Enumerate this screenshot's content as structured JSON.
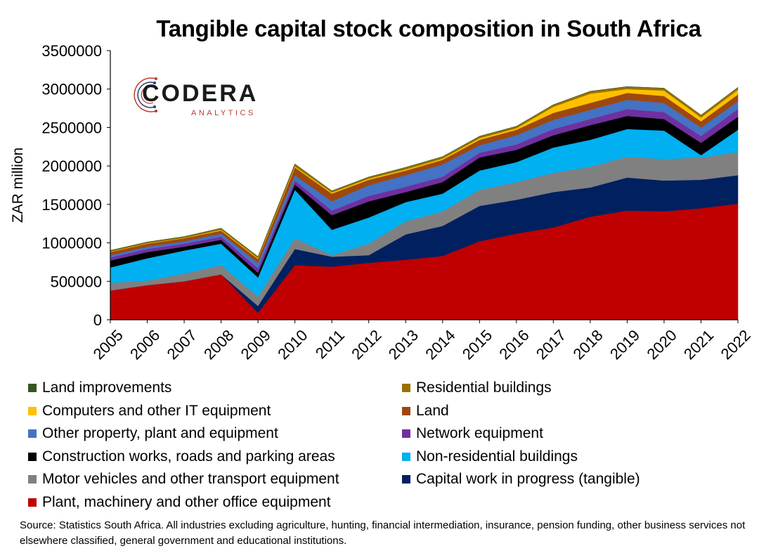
{
  "chart_data": {
    "type": "area",
    "stacked": true,
    "title": "Tangible capital stock composition in South Africa",
    "ylabel": "ZAR million",
    "xlabel": "",
    "ylim": [
      0,
      3500000
    ],
    "yticks": [
      0,
      500000,
      1000000,
      1500000,
      2000000,
      2500000,
      3000000,
      3500000
    ],
    "ytick_labels": [
      "0",
      "500000",
      "1000000",
      "1500000",
      "2000000",
      "2500000",
      "3000000",
      "3500000"
    ],
    "categories": [
      "2005",
      "2006",
      "2007",
      "2008",
      "2009",
      "2010",
      "2011",
      "2012",
      "2013",
      "2014",
      "2015",
      "2016",
      "2017",
      "2018",
      "2019",
      "2020",
      "2021",
      "2022"
    ],
    "grid": false,
    "legend_position": "bottom",
    "series": [
      {
        "name": "Plant, machinery and other office equipment",
        "color": "#c00000",
        "values": [
          380000,
          450000,
          500000,
          590000,
          90000,
          710000,
          690000,
          740000,
          780000,
          830000,
          1020000,
          1120000,
          1200000,
          1340000,
          1420000,
          1410000,
          1450000,
          1510000
        ]
      },
      {
        "name": "Capital work in progress (tangible)",
        "color": "#002060",
        "values": [
          0,
          0,
          0,
          0,
          90000,
          210000,
          130000,
          100000,
          330000,
          390000,
          460000,
          440000,
          460000,
          380000,
          430000,
          400000,
          370000,
          370000
        ]
      },
      {
        "name": "Motor vehicles and other transport equipment",
        "color": "#808080",
        "values": [
          100000,
          60000,
          100000,
          120000,
          120000,
          140000,
          20000,
          150000,
          170000,
          190000,
          210000,
          230000,
          250000,
          270000,
          270000,
          280000,
          290000,
          300000
        ]
      },
      {
        "name": "Non-residential buildings",
        "color": "#00b0f0",
        "values": [
          200000,
          290000,
          300000,
          280000,
          250000,
          630000,
          330000,
          340000,
          250000,
          230000,
          250000,
          260000,
          330000,
          350000,
          360000,
          370000,
          30000,
          290000
        ]
      },
      {
        "name": "Construction works, roads and parking areas",
        "color": "#000000",
        "values": [
          90000,
          80000,
          50000,
          50000,
          60000,
          70000,
          190000,
          210000,
          130000,
          150000,
          170000,
          160000,
          160000,
          190000,
          170000,
          150000,
          160000,
          170000
        ]
      },
      {
        "name": "Network equipment",
        "color": "#7030a0",
        "values": [
          40000,
          40000,
          40000,
          40000,
          60000,
          50000,
          60000,
          70000,
          70000,
          70000,
          60000,
          70000,
          80000,
          80000,
          90000,
          90000,
          90000,
          100000
        ]
      },
      {
        "name": "Other property, plant and equipment",
        "color": "#4472c4",
        "values": [
          30000,
          30000,
          30000,
          40000,
          70000,
          70000,
          120000,
          140000,
          150000,
          160000,
          100000,
          120000,
          120000,
          120000,
          120000,
          120000,
          110000,
          100000
        ]
      },
      {
        "name": "Land",
        "color": "#9e480e",
        "values": [
          40000,
          40000,
          40000,
          40000,
          50000,
          100000,
          100000,
          70000,
          60000,
          60000,
          70000,
          70000,
          90000,
          90000,
          90000,
          90000,
          80000,
          90000
        ]
      },
      {
        "name": "Computers and other IT equipment",
        "color": "#ffc000",
        "values": [
          5000,
          5000,
          5000,
          10000,
          10000,
          15000,
          15000,
          15000,
          15000,
          15000,
          20000,
          20000,
          80000,
          120000,
          50000,
          70000,
          50000,
          60000
        ]
      },
      {
        "name": "Residential buildings",
        "color": "#997300",
        "values": [
          15000,
          15000,
          15000,
          20000,
          20000,
          30000,
          20000,
          20000,
          25000,
          25000,
          25000,
          25000,
          25000,
          30000,
          30000,
          30000,
          30000,
          30000
        ]
      },
      {
        "name": "Land improvements",
        "color": "#375623",
        "values": [
          2000,
          2000,
          2000,
          2000,
          2000,
          2000,
          2000,
          2000,
          2000,
          2000,
          2000,
          2000,
          2000,
          2000,
          2000,
          2000,
          2000,
          2000
        ]
      }
    ]
  },
  "legend_order": [
    "Land improvements",
    "Residential buildings",
    "Computers and other IT equipment",
    "Land",
    "Other property, plant and equipment",
    "Network equipment",
    "Construction works, roads and parking areas",
    "Non-residential buildings",
    "Motor vehicles and other transport equipment",
    "Capital work in progress (tangible)",
    "Plant, machinery and other office equipment"
  ],
  "logo": {
    "main": "CODERA",
    "sub": "ANALYTICS"
  },
  "source": "Source: Statistics South Africa. All industries excluding agriculture, hunting, financial intermediation, insurance, pension funding, other business services not elsewhere classified, general government and educational institutions."
}
